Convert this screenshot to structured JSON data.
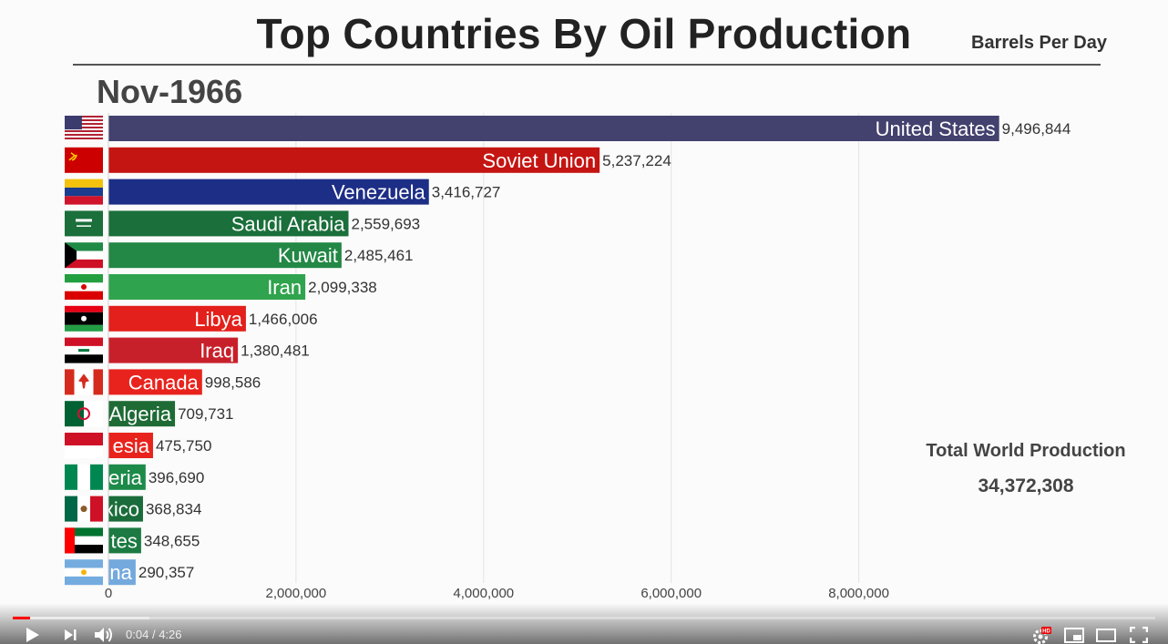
{
  "title": "Top Countries By Oil Production",
  "units": "Barrels Per Day",
  "date": "Nov-1966",
  "total": {
    "label": "Total World Production",
    "value": "34,372,308"
  },
  "player": {
    "current_time": "0:04",
    "separator": "/",
    "duration": "4:26",
    "progress_fraction": 0.015,
    "buffered_fraction": 0.12,
    "hd_badge": "HD"
  },
  "chart_data": {
    "type": "bar",
    "orientation": "horizontal",
    "title": "Top Countries By Oil Production",
    "subtitle": "Nov-1966",
    "xlim": [
      0,
      9500000
    ],
    "xticks": [
      0,
      2000000,
      4000000,
      6000000,
      8000000
    ],
    "xtick_labels": [
      "0",
      "2,000,000",
      "4,000,000",
      "6,000,000",
      "8,000,000"
    ],
    "grid": true,
    "categories": [
      "United States",
      "Soviet Union",
      "Venezuela",
      "Saudi Arabia",
      "Kuwait",
      "Iran",
      "Libya",
      "Iraq",
      "Canada",
      "Algeria",
      "Indonesia",
      "Nigeria",
      "Mexico",
      "United Arab Emirates",
      "Argentina"
    ],
    "visible_labels": [
      "United States",
      "Soviet Union",
      "Venezuela",
      "Saudi Arabia",
      "Kuwait",
      "Iran",
      "Libya",
      "Iraq",
      "Canada",
      "Algeria",
      "esia",
      "eria",
      "xico",
      "tes",
      "na"
    ],
    "value_labels": [
      "9,496,844",
      "5,237,224",
      "3,416,727",
      "2,559,693",
      "2,485,461",
      "2,099,338",
      "1,466,006",
      "1,380,481",
      "998,586",
      "709,731",
      "475,750",
      "396,690",
      "368,834",
      "348,655",
      "290,357"
    ],
    "values": [
      9496844,
      5237224,
      3416727,
      2559693,
      2485461,
      2099338,
      1466006,
      1380481,
      998586,
      709731,
      475750,
      396690,
      368834,
      348655,
      290357
    ],
    "colors": [
      "#43416e",
      "#c41512",
      "#1d2e86",
      "#1a6f3a",
      "#238745",
      "#2fa34d",
      "#e3201b",
      "#c8202b",
      "#e8231d",
      "#1e6b36",
      "#e8231d",
      "#1d8a4a",
      "#1a6d3a",
      "#1c7a42",
      "#74a9dd"
    ],
    "flags": [
      "flag-usa-icon",
      "flag-ussr-icon",
      "flag-venezuela-icon",
      "flag-saudi-arabia-icon",
      "flag-kuwait-icon",
      "flag-iran-icon",
      "flag-libya-icon",
      "flag-iraq-icon",
      "flag-canada-icon",
      "flag-algeria-icon",
      "flag-indonesia-icon",
      "flag-nigeria-icon",
      "flag-mexico-icon",
      "flag-uae-icon",
      "flag-argentina-icon"
    ]
  }
}
